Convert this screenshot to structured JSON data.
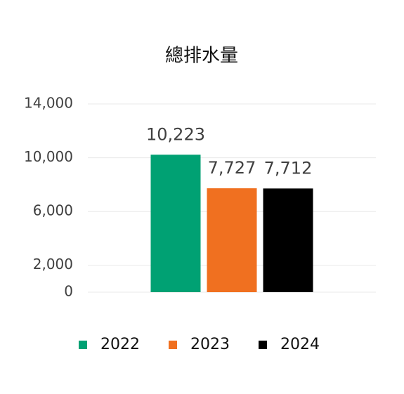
{
  "chart_data": {
    "type": "bar",
    "title": "總排水量",
    "categories": [
      null
    ],
    "series": [
      {
        "name": "2022",
        "color": "#00a173",
        "values": [
          10223
        ],
        "value_labels": [
          "10,223"
        ]
      },
      {
        "name": "2023",
        "color": "#f07020",
        "values": [
          7727
        ],
        "value_labels": [
          "7,727"
        ]
      },
      {
        "name": "2024",
        "color": "#000000",
        "values": [
          7712
        ],
        "value_labels": [
          "7,712"
        ]
      }
    ],
    "ylim": [
      0,
      14000
    ],
    "yticks": [
      0,
      {
        "value": 2000,
        "label": "2,000"
      },
      {
        "value": 6000,
        "label": "6,000"
      },
      {
        "value": 10000,
        "label": "10,000"
      },
      {
        "value": 14000,
        "label": "14,000"
      }
    ],
    "grid": true,
    "legend": "bottom"
  }
}
